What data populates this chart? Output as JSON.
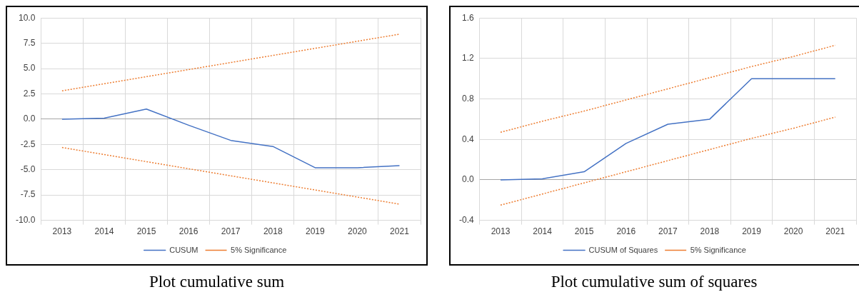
{
  "chart_data": [
    {
      "type": "line",
      "categories": [
        "2013",
        "2014",
        "2015",
        "2016",
        "2017",
        "2018",
        "2019",
        "2020",
        "2021"
      ],
      "series": [
        {
          "name": "CUSUM",
          "color": "#4472c4",
          "line_style": "solid",
          "values": [
            0,
            0.1,
            1.0,
            -0.6,
            -2.1,
            -2.7,
            -4.8,
            -4.8,
            -4.6
          ]
        },
        {
          "name": "5% Significance",
          "color": "#ed7d31",
          "line_style": "dotted",
          "values": [
            2.8,
            3.5,
            4.2,
            4.9,
            5.6,
            6.3,
            7.0,
            7.7,
            8.4
          ]
        },
        {
          "color": "#ed7d31",
          "line_style": "dotted",
          "values": [
            -2.8,
            -3.5,
            -4.2,
            -4.9,
            -5.6,
            -6.3,
            -7.0,
            -7.7,
            -8.4
          ]
        }
      ],
      "ylim": [
        -10,
        10
      ],
      "yticks": [
        {
          "value": -10,
          "label": "-10.0"
        },
        -7.5,
        {
          "value": -5,
          "label": "-5.0"
        },
        -2.5,
        {
          "value": 0,
          "label": "0.0"
        },
        2.5,
        {
          "value": 5,
          "label": "5.0"
        },
        7.5,
        {
          "value": 10,
          "label": "10.0"
        }
      ],
      "grid": true,
      "legend": "bottom",
      "marker": "none",
      "annotations": [
        "Plot cumulative sum"
      ]
    },
    {
      "type": "line",
      "categories": [
        "2013",
        "2014",
        "2015",
        "2016",
        "2017",
        "2018",
        "2019",
        "2020",
        "2021"
      ],
      "series": [
        {
          "name": "CUSUM of Squares",
          "color": "#4472c4",
          "line_style": "solid",
          "values": [
            0,
            0.01,
            0.08,
            0.36,
            0.55,
            0.6,
            1.0,
            1.0,
            1.0
          ]
        },
        {
          "name": "5% Significance",
          "color": "#ed7d31",
          "line_style": "dotted",
          "values": [
            0.47,
            0.58,
            0.68,
            0.79,
            0.9,
            1.01,
            1.12,
            1.22,
            1.33
          ]
        },
        {
          "color": "#ed7d31",
          "line_style": "dotted",
          "values": [
            -0.25,
            -0.14,
            -0.03,
            0.08,
            0.19,
            0.3,
            0.41,
            0.51,
            0.62
          ]
        }
      ],
      "ylim": [
        -0.4,
        1.6
      ],
      "yticks": [
        -0.4,
        {
          "value": 0,
          "label": "0.0"
        },
        0.4,
        0.8,
        1.2,
        1.6
      ],
      "grid": true,
      "legend": "bottom",
      "marker": "none",
      "annotations": [
        "Plot cumulative sum of squares"
      ]
    }
  ]
}
